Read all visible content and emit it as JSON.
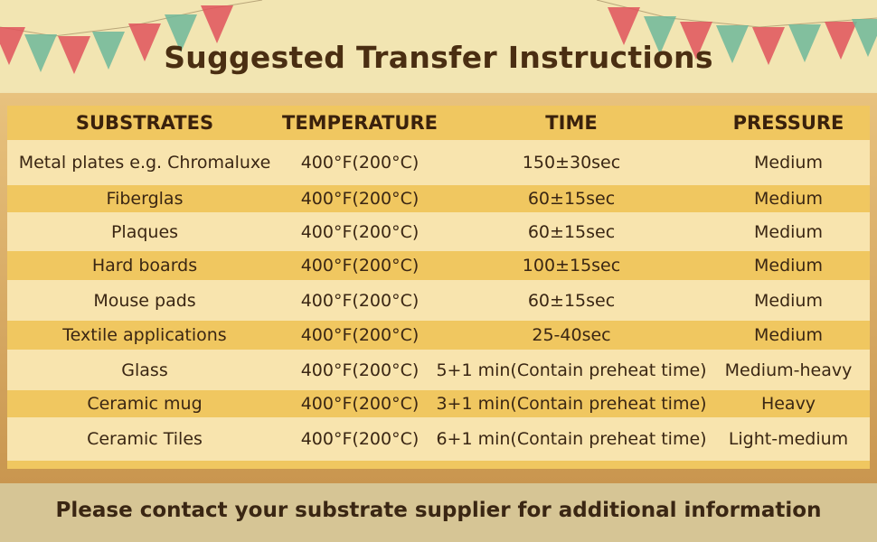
{
  "title": "Suggested Transfer Instructions",
  "headers": [
    "SUBSTRATES",
    "TEMPERATURE",
    "TIME",
    "PRESSURE"
  ],
  "rows": [
    [
      "Metal plates e.g. Chromaluxe",
      "400°F(200°C)",
      "150±30sec",
      "Medium"
    ],
    [
      "Fiberglas",
      "400°F(200°C)",
      "60±15sec",
      "Medium"
    ],
    [
      "Plaques",
      "400°F(200°C)",
      "60±15sec",
      "Medium"
    ],
    [
      "Hard boards",
      "400°F(200°C)",
      "100±15sec",
      "Medium"
    ],
    [
      "Mouse pads",
      "400°F(200°C)",
      "60±15sec",
      "Medium"
    ],
    [
      "Textile applications",
      "400°F(200°C)",
      "25-40sec",
      "Medium"
    ],
    [
      "Glass",
      "400°F(200°C)",
      "5+1 min(Contain preheat time)",
      "Medium-heavy"
    ],
    [
      "Ceramic mug",
      "400°F(200°C)",
      "3+1 min(Contain preheat time)",
      "Heavy"
    ],
    [
      "Ceramic Tiles",
      "400°F(200°C)",
      "6+1 min(Contain preheat time)",
      "Light-medium"
    ]
  ],
  "footer": "Please contact your substrate supplier for additional information",
  "colors": {
    "light_row": "#f8e4ae",
    "gold_row": "#f0c760",
    "frame": "#d9ad68",
    "flag_red": "#e0545c",
    "flag_green": "#6fb89a"
  }
}
